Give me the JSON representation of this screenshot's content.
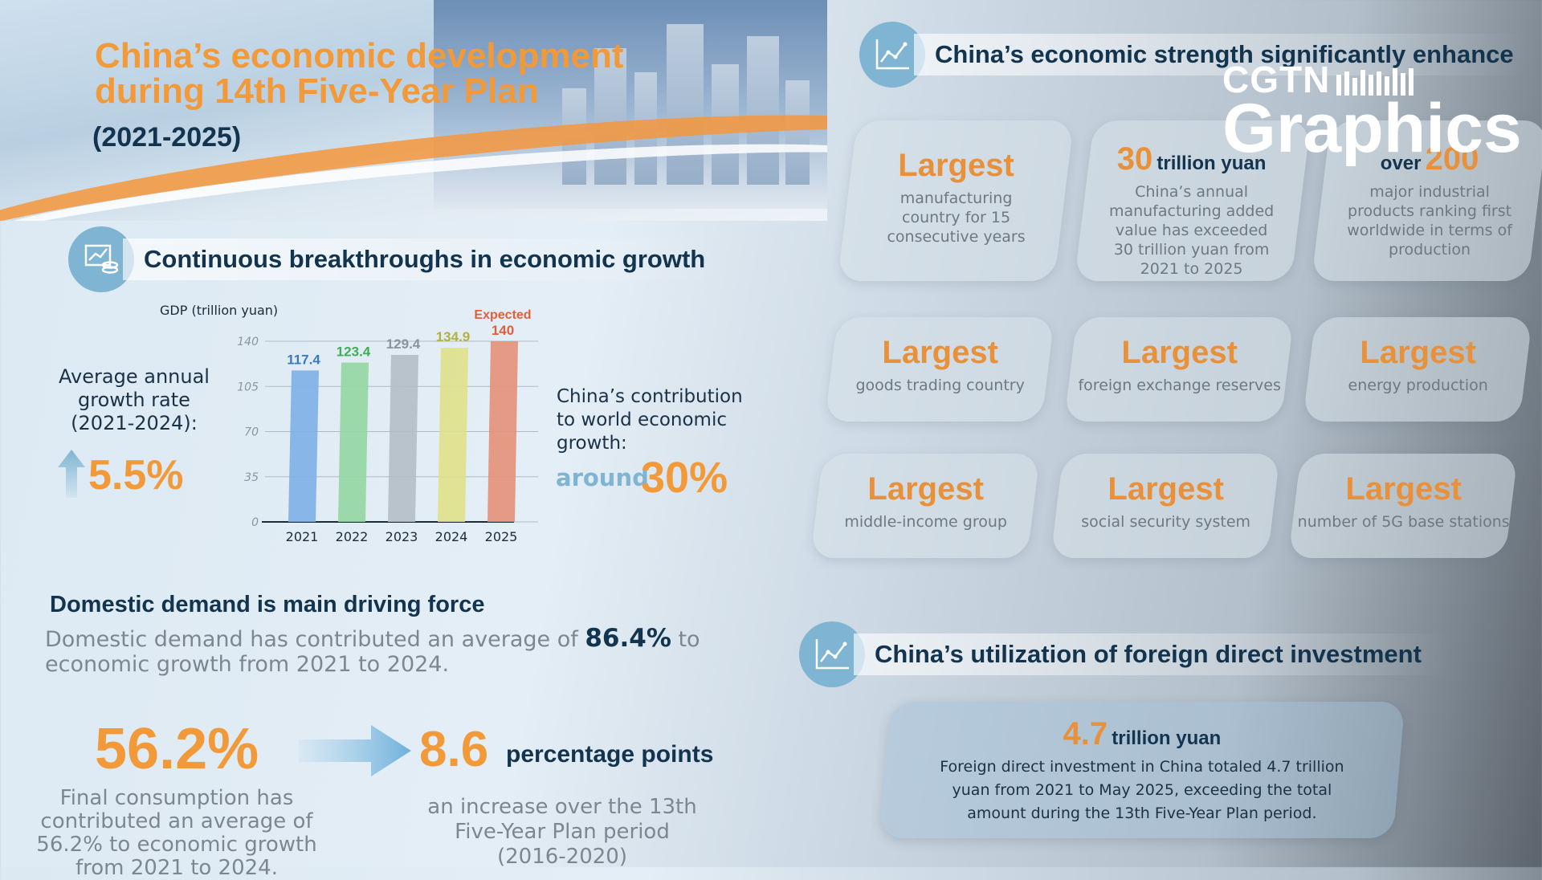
{
  "header": {
    "title_line1": "China’s economic development",
    "title_line2": "during 14th Five-Year Plan",
    "period": "(2021-2025)"
  },
  "section_growth": {
    "title": "Continuous breakthroughs in economic growth",
    "gdp_label": "GDP (trillion yuan)",
    "avg_rate_label": "Average annual growth rate (2021-2024):",
    "avg_rate_value": "5.5%",
    "contribution_label": "China’s contribution to world economic growth:",
    "contribution_prefix": "around",
    "contribution_value": "30%"
  },
  "chart_data": {
    "type": "bar",
    "title": "",
    "ylabel": "GDP (trillion yuan)",
    "xlabel": "",
    "categories": [
      "2021",
      "2022",
      "2023",
      "2024",
      "2025"
    ],
    "values": [
      117.4,
      123.4,
      129.4,
      134.9,
      140
    ],
    "value_labels": [
      "117.4",
      "123.4",
      "129.4",
      "134.9",
      "140"
    ],
    "annotations": [
      {
        "category": "2025",
        "text": "Expected"
      }
    ],
    "bar_colors": [
      "#7fb0e8",
      "#94d6a2",
      "#b4bec6",
      "#dfe08a",
      "#e4907a"
    ],
    "label_colors": [
      "#3a78c8",
      "#3fae57",
      "#8a949c",
      "#b4b23a",
      "#e0603a"
    ],
    "ylim": [
      0,
      140
    ],
    "yticks": [
      "0",
      "35",
      "70",
      "105",
      "140"
    ],
    "grid": true
  },
  "section_demand": {
    "title": "Domestic demand is main driving force",
    "text_before": "Domestic demand has contributed an average of ",
    "text_value": "86.4%",
    "text_after": " to economic growth from 2021 to 2024.",
    "final_consumption_value": "56.2%",
    "final_consumption_text": "Final consumption has contributed an average of 56.2% to economic growth from 2021 to 2024.",
    "increase_value": "8.6",
    "increase_unit": "percentage points",
    "increase_text": "an increase over the 13th Five-Year Plan period (2016-2020)"
  },
  "section_strength": {
    "title": "China’s economic strength significantly enhance",
    "cards_top": [
      {
        "big": "Largest",
        "small": "manufacturing country for 15 consecutive years"
      },
      {
        "num": "30",
        "unit": "trillion yuan",
        "small": "China’s annual manufacturing added value has exceeded 30 trillion yuan from 2021 to 2025"
      },
      {
        "prefix": "over",
        "num": "200",
        "small": "major industrial products ranking first worldwide in terms of production"
      }
    ],
    "cards_mid": [
      {
        "big": "Largest",
        "small": "goods trading country"
      },
      {
        "big": "Largest",
        "small": "foreign exchange reserves"
      },
      {
        "big": "Largest",
        "small": "energy production"
      }
    ],
    "cards_bot": [
      {
        "big": "Largest",
        "small": "middle-income group"
      },
      {
        "big": "Largest",
        "small": "social security system"
      },
      {
        "big": "Largest",
        "small": "number of 5G base stations"
      }
    ]
  },
  "section_fdi": {
    "title": "China’s utilization of foreign direct investment",
    "num": "4.7",
    "unit": "trillion yuan",
    "text": "Foreign direct investment in China totaled 4.7 trillion yuan from 2021 to May 2025, exceeding the total amount during the 13th Five-Year Plan period."
  },
  "logo": {
    "line1": "CGTN",
    "line2": "Graphics"
  },
  "colors": {
    "accent": "#f29a3a",
    "navy": "#13344f",
    "icon_blue": "#7fb4d2"
  }
}
